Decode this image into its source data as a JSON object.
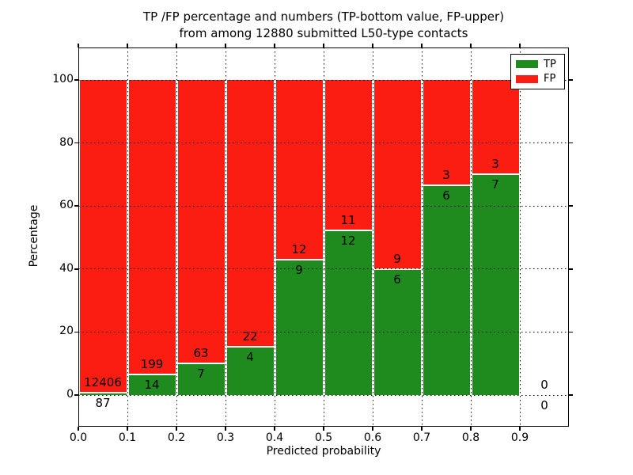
{
  "chart_data": {
    "type": "bar",
    "stacked": true,
    "title_line1": "TP /FP percentage and numbers (TP-bottom value, FP-upper)",
    "title_line2": "from among 12880 submitted L50-type contacts",
    "xlabel": "Predicted probability",
    "ylabel": "Percentage",
    "xlim": [
      0.0,
      1.0
    ],
    "ylim": [
      -10,
      110
    ],
    "xticks": [
      "0.0",
      "0.1",
      "0.2",
      "0.3",
      "0.4",
      "0.5",
      "0.6",
      "0.7",
      "0.8",
      "0.9"
    ],
    "ytick_values": [
      0,
      20,
      40,
      60,
      80,
      100
    ],
    "yticks": [
      "0",
      "20",
      "40",
      "60",
      "80",
      "100"
    ],
    "grid": "dotted-black-on-all-ticks",
    "bar_total_pct": 100,
    "colors": {
      "tp": "#1f8b1f",
      "fp": "#fb1d12"
    },
    "legend": {
      "position": "upper right",
      "items": [
        {
          "label": "TP",
          "color": "#1f8b1f"
        },
        {
          "label": "FP",
          "color": "#fb1d12"
        }
      ]
    },
    "total_contacts": 12880,
    "bins": [
      {
        "range": "0.0-0.1",
        "center": 0.05,
        "tp_count": 87,
        "fp_count": 12406,
        "tp_pct": 0.7
      },
      {
        "range": "0.1-0.2",
        "center": 0.15,
        "tp_count": 14,
        "fp_count": 199,
        "tp_pct": 6.57
      },
      {
        "range": "0.2-0.3",
        "center": 0.25,
        "tp_count": 7,
        "fp_count": 63,
        "tp_pct": 10.0
      },
      {
        "range": "0.3-0.4",
        "center": 0.35,
        "tp_count": 4,
        "fp_count": 22,
        "tp_pct": 15.38
      },
      {
        "range": "0.4-0.5",
        "center": 0.45,
        "tp_count": 9,
        "fp_count": 12,
        "tp_pct": 42.86
      },
      {
        "range": "0.5-0.6",
        "center": 0.55,
        "tp_count": 12,
        "fp_count": 11,
        "tp_pct": 52.17
      },
      {
        "range": "0.6-0.7",
        "center": 0.65,
        "tp_count": 6,
        "fp_count": 9,
        "tp_pct": 40.0
      },
      {
        "range": "0.7-0.8",
        "center": 0.75,
        "tp_count": 6,
        "fp_count": 3,
        "tp_pct": 66.67
      },
      {
        "range": "0.8-0.9",
        "center": 0.85,
        "tp_count": 7,
        "fp_count": 3,
        "tp_pct": 70.0
      },
      {
        "range": "0.9-1.0",
        "center": 0.95,
        "tp_count": 0,
        "fp_count": 0,
        "tp_pct": 0.0
      }
    ]
  }
}
